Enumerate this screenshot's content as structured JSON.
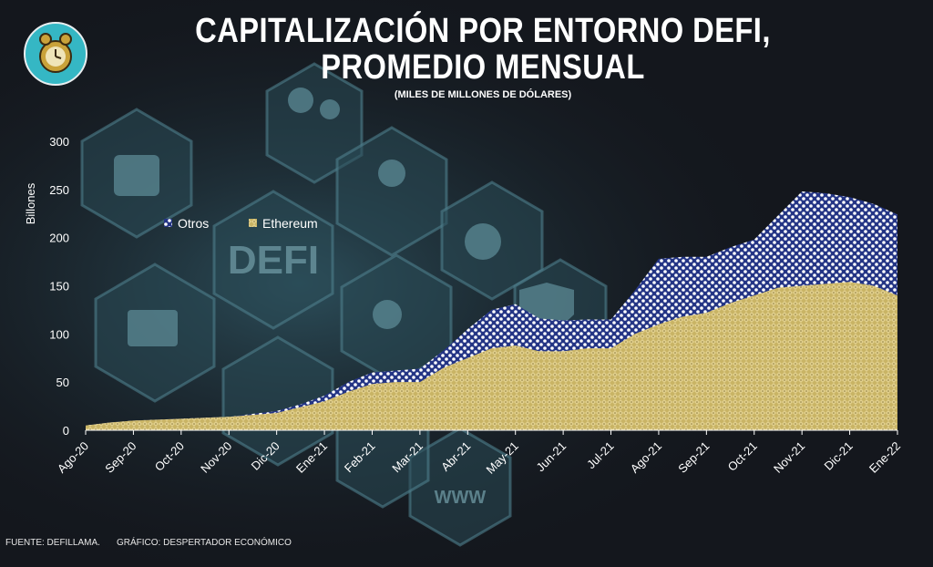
{
  "header": {
    "title_line1": "CAPITALIZACIÓN POR ENTORNO DEFI,",
    "title_line2": "PROMEDIO MENSUAL",
    "subtitle": "(MILES DE MILLONES DE DÓLARES)"
  },
  "background": {
    "hex_label": "DEFI",
    "www_label": "WWW"
  },
  "footer": {
    "source": "FUENTE: DEFILLAMA.",
    "credit": "GRÁFICO: DESPERTADOR ECONÓMICO"
  },
  "colors": {
    "ethereum": "#c9b465",
    "otros": "#2b3a8c",
    "background": "#14171d"
  },
  "chart_data": {
    "type": "area",
    "stacked": true,
    "title": "CAPITALIZACIÓN POR ENTORNO DEFI, PROMEDIO MENSUAL",
    "subtitle": "(MILES DE MILLONES DE DÓLARES)",
    "ylabel": "Billones",
    "xlabel": "",
    "ylim": [
      0,
      300
    ],
    "yticks": [
      0,
      50,
      100,
      150,
      200,
      250,
      300
    ],
    "categories": [
      "Ago-20",
      "Sep-20",
      "Oct-20",
      "Nov-20",
      "Dic-20",
      "Ene-21",
      "Feb-21",
      "Mar-21",
      "Abr-21",
      "May-21",
      "Jun-21",
      "Jul-21",
      "Ago-21",
      "Sep-21",
      "Oct-21",
      "Nov-21",
      "Dic-21",
      "Ene-22"
    ],
    "x": [
      0,
      0.5,
      1,
      1.5,
      2,
      2.5,
      3,
      3.5,
      4,
      4.5,
      5,
      5.5,
      6,
      6.5,
      7,
      7.5,
      8,
      8.5,
      9,
      9.5,
      10,
      10.5,
      11,
      11.5,
      12,
      12.5,
      13,
      13.5,
      14,
      14.5,
      15,
      15.5,
      16,
      16.5,
      17
    ],
    "series": [
      {
        "name": "Ethereum",
        "values": [
          5,
          8,
          10,
          11,
          12,
          13,
          14,
          16,
          18,
          24,
          30,
          40,
          48,
          50,
          50,
          65,
          75,
          85,
          88,
          82,
          82,
          85,
          85,
          100,
          110,
          118,
          122,
          132,
          140,
          148,
          150,
          152,
          154,
          150,
          140
        ]
      },
      {
        "name": "Otros",
        "values": [
          0,
          0,
          0,
          0,
          0,
          0,
          0,
          1,
          2,
          3,
          6,
          10,
          12,
          12,
          14,
          18,
          30,
          40,
          43,
          34,
          32,
          30,
          30,
          45,
          68,
          62,
          58,
          58,
          58,
          75,
          98,
          94,
          88,
          85,
          84
        ]
      }
    ],
    "legend": [
      "Otros",
      "Ethereum"
    ],
    "legend_position": "top-left"
  }
}
